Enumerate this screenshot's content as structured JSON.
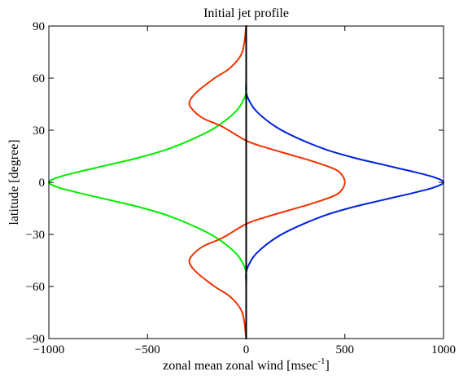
{
  "chart_data": {
    "type": "line",
    "title": "Initial jet profile",
    "xlabel": "zonal mean zonal wind [msec",
    "xlabel_superscript": "-1",
    "xlabel_suffix": "]",
    "ylabel": "latitude [degree]",
    "xlim": [
      -1000,
      1000
    ],
    "ylim": [
      -90,
      90
    ],
    "x_ticks": [
      -1000,
      -500,
      0,
      500,
      1000
    ],
    "x_tick_labels": [
      "−1000",
      "−500",
      "0",
      "500",
      "1000"
    ],
    "y_ticks": [
      90,
      60,
      30,
      0,
      -30,
      -60,
      -90
    ],
    "y_tick_labels": [
      "90",
      "60",
      "30",
      "0",
      "−30",
      "−60",
      "−90"
    ],
    "grid": false,
    "series": [
      {
        "color": "#0022dd",
        "points": [
          [
            0,
            90
          ],
          [
            0,
            60
          ],
          [
            0,
            52
          ],
          [
            20,
            46
          ],
          [
            60,
            40
          ],
          [
            150,
            32
          ],
          [
            250,
            26
          ],
          [
            400,
            19
          ],
          [
            550,
            14
          ],
          [
            700,
            10
          ],
          [
            850,
            6
          ],
          [
            950,
            3
          ],
          [
            1000,
            0
          ],
          [
            950,
            -3
          ],
          [
            850,
            -6
          ],
          [
            700,
            -10
          ],
          [
            550,
            -14
          ],
          [
            400,
            -19
          ],
          [
            250,
            -26
          ],
          [
            150,
            -32
          ],
          [
            60,
            -40
          ],
          [
            20,
            -46
          ],
          [
            0,
            -52
          ],
          [
            0,
            -60
          ],
          [
            0,
            -90
          ]
        ]
      },
      {
        "color": "#00ee00",
        "points": [
          [
            0,
            90
          ],
          [
            0,
            60
          ],
          [
            0,
            52
          ],
          [
            -20,
            46
          ],
          [
            -60,
            40
          ],
          [
            -150,
            32
          ],
          [
            -250,
            26
          ],
          [
            -400,
            19
          ],
          [
            -550,
            14
          ],
          [
            -700,
            10
          ],
          [
            -850,
            6
          ],
          [
            -950,
            3
          ],
          [
            -1000,
            0
          ],
          [
            -950,
            -3
          ],
          [
            -850,
            -6
          ],
          [
            -700,
            -10
          ],
          [
            -550,
            -14
          ],
          [
            -400,
            -19
          ],
          [
            -250,
            -26
          ],
          [
            -150,
            -32
          ],
          [
            -60,
            -40
          ],
          [
            -20,
            -46
          ],
          [
            0,
            -52
          ],
          [
            0,
            -60
          ],
          [
            0,
            -90
          ]
        ]
      },
      {
        "color": "#ee3300",
        "points": [
          [
            0,
            90
          ],
          [
            -20,
            75
          ],
          [
            -80,
            66
          ],
          [
            -160,
            60
          ],
          [
            -250,
            52
          ],
          [
            -285,
            47
          ],
          [
            -280,
            43
          ],
          [
            -220,
            37
          ],
          [
            -120,
            32
          ],
          [
            0,
            24
          ],
          [
            100,
            20
          ],
          [
            220,
            16
          ],
          [
            340,
            12
          ],
          [
            440,
            8
          ],
          [
            480,
            5
          ],
          [
            500,
            0
          ],
          [
            480,
            -5
          ],
          [
            440,
            -8
          ],
          [
            340,
            -12
          ],
          [
            220,
            -16
          ],
          [
            100,
            -20
          ],
          [
            0,
            -24
          ],
          [
            -120,
            -32
          ],
          [
            -220,
            -37
          ],
          [
            -280,
            -43
          ],
          [
            -285,
            -47
          ],
          [
            -250,
            -52
          ],
          [
            -160,
            -60
          ],
          [
            -80,
            -66
          ],
          [
            -20,
            -75
          ],
          [
            0,
            -90
          ]
        ]
      },
      {
        "color": "#000000",
        "points": [
          [
            0,
            90
          ],
          [
            0,
            -90
          ]
        ]
      }
    ]
  }
}
